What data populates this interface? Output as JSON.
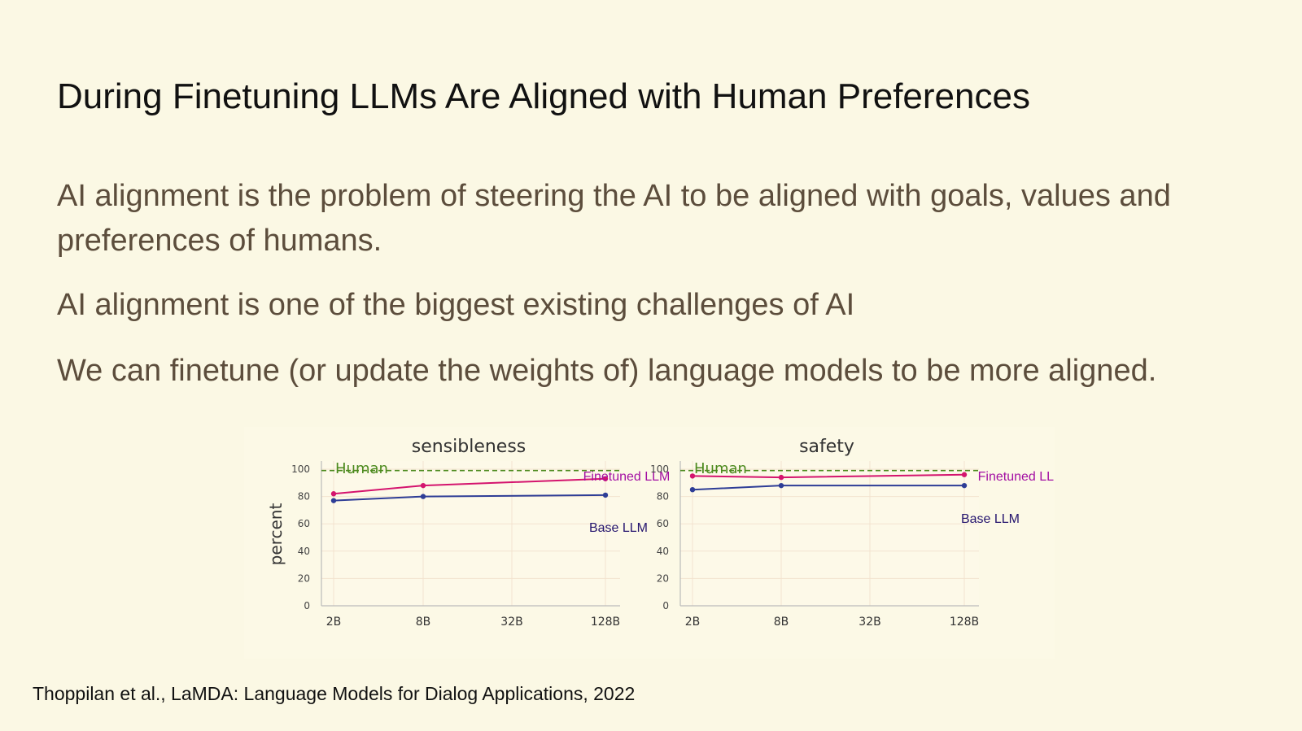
{
  "slide": {
    "title": "During Finetuning LLMs Are Aligned with Human Preferences",
    "paragraphs": [
      "AI alignment is the problem of steering the AI to be aligned with goals, values and preferences of humans.",
      "AI alignment is one of the biggest existing challenges of AI",
      "We can finetune (or update the weights of) language models to be more aligned."
    ],
    "citation": "Thoppilan et al., LaMDA: Language Models for Dialog Applications, 2022"
  },
  "colors": {
    "background": "#fbf8e4",
    "finetuned": "#d4146e",
    "base": "#2e3d96",
    "human": "#4c8a1e",
    "finetuned_label": "#a30fa3",
    "base_label": "#24146e"
  },
  "chart_data": [
    {
      "type": "line",
      "title": "sensibleness",
      "ylabel": "percent",
      "xlabel": "",
      "categories": [
        "2B",
        "8B",
        "32B",
        "128B"
      ],
      "ylim": [
        0,
        100
      ],
      "yticks": [
        0,
        20,
        40,
        60,
        80,
        100
      ],
      "grid": true,
      "human_baseline": {
        "label": "Human",
        "value": 99
      },
      "series": [
        {
          "name": "Finetuned LLM",
          "points": [
            {
              "x": "2B",
              "y": 82
            },
            {
              "x": "8B",
              "y": 88
            },
            {
              "x": "128B",
              "y": 93
            }
          ]
        },
        {
          "name": "Base LLM",
          "points": [
            {
              "x": "2B",
              "y": 77
            },
            {
              "x": "8B",
              "y": 80
            },
            {
              "x": "128B",
              "y": 81
            }
          ]
        }
      ]
    },
    {
      "type": "line",
      "title": "safety",
      "ylabel": "",
      "xlabel": "",
      "categories": [
        "2B",
        "8B",
        "32B",
        "128B"
      ],
      "ylim": [
        0,
        100
      ],
      "yticks": [
        0,
        20,
        40,
        60,
        80,
        100
      ],
      "grid": true,
      "human_baseline": {
        "label": "Human",
        "value": 99
      },
      "series": [
        {
          "name": "Finetuned LLM",
          "points": [
            {
              "x": "2B",
              "y": 95
            },
            {
              "x": "8B",
              "y": 94
            },
            {
              "x": "128B",
              "y": 96
            }
          ]
        },
        {
          "name": "Base LLM",
          "points": [
            {
              "x": "2B",
              "y": 85
            },
            {
              "x": "8B",
              "y": 88
            },
            {
              "x": "128B",
              "y": 88
            }
          ]
        }
      ]
    }
  ]
}
